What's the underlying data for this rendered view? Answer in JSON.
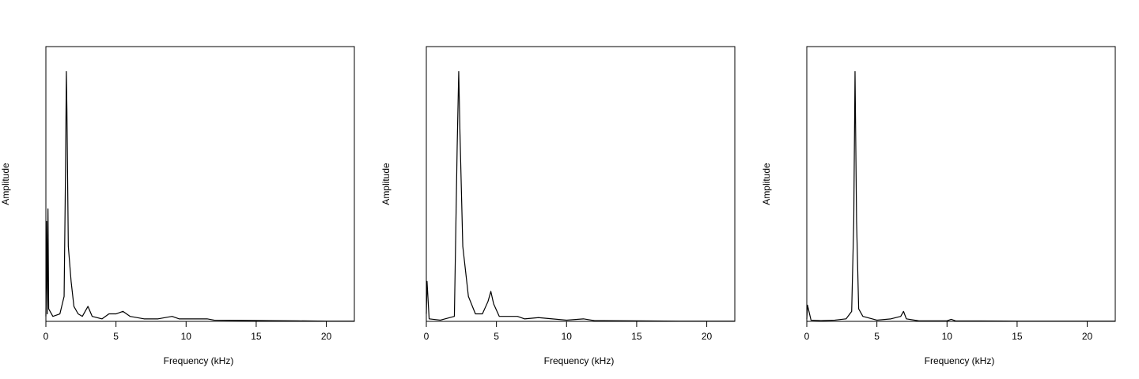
{
  "chart_data": [
    {
      "type": "line",
      "x_label": "Frequency (kHz)",
      "y_label": "Amplitude",
      "color": "#000000",
      "xlim": [
        0,
        22
      ],
      "ylim": [
        0,
        1.1
      ],
      "xticks": [
        0,
        5,
        10,
        15,
        20
      ],
      "x": [
        0,
        0.05,
        0.1,
        0.15,
        0.2,
        0.5,
        1.0,
        1.3,
        1.4,
        1.46,
        1.5,
        1.6,
        1.8,
        2.0,
        2.3,
        2.6,
        3.0,
        3.3,
        4.0,
        4.5,
        5.0,
        5.5,
        6.0,
        7.0,
        8.0,
        9.0,
        9.5,
        10.0,
        11.0,
        11.5,
        12,
        14,
        16,
        18,
        20,
        22
      ],
      "values": [
        0.02,
        0.4,
        0.03,
        0.45,
        0.05,
        0.02,
        0.03,
        0.1,
        0.6,
        1.0,
        0.85,
        0.3,
        0.16,
        0.06,
        0.03,
        0.02,
        0.06,
        0.02,
        0.01,
        0.03,
        0.03,
        0.04,
        0.02,
        0.01,
        0.01,
        0.02,
        0.01,
        0.01,
        0.01,
        0.01,
        0.005,
        0.004,
        0.003,
        0.002,
        0.001,
        0.001
      ]
    },
    {
      "type": "line",
      "x_label": "Frequency (kHz)",
      "y_label": "Amplitude",
      "color": "#000000",
      "xlim": [
        0,
        22
      ],
      "ylim": [
        0,
        1.1
      ],
      "xticks": [
        0,
        5,
        10,
        15,
        20
      ],
      "x": [
        0,
        0.05,
        0.2,
        1,
        2.0,
        2.2,
        2.31,
        2.4,
        2.6,
        2.8,
        3.0,
        3.5,
        4.0,
        4.4,
        4.6,
        4.8,
        5.2,
        6,
        6.5,
        7,
        8,
        9,
        10,
        11.2,
        12,
        15,
        18,
        22
      ],
      "values": [
        0.03,
        0.16,
        0.01,
        0.005,
        0.02,
        0.7,
        1.0,
        0.75,
        0.3,
        0.2,
        0.1,
        0.03,
        0.03,
        0.08,
        0.12,
        0.07,
        0.02,
        0.02,
        0.02,
        0.01,
        0.015,
        0.01,
        0.005,
        0.01,
        0.003,
        0.002,
        0.001,
        0.001
      ]
    },
    {
      "type": "line",
      "x_label": "Frequency (kHz)",
      "y_label": "Amplitude",
      "color": "#000000",
      "xlim": [
        0,
        22
      ],
      "ylim": [
        0,
        1.1
      ],
      "xticks": [
        0,
        5,
        10,
        15,
        20
      ],
      "x": [
        0,
        0.05,
        0.3,
        1,
        2,
        2.8,
        3.2,
        3.35,
        3.44,
        3.55,
        3.7,
        4,
        5,
        6,
        6.7,
        6.9,
        7.1,
        8,
        10,
        10.3,
        10.6,
        15,
        22
      ],
      "values": [
        0.01,
        0.065,
        0.005,
        0.003,
        0.005,
        0.01,
        0.04,
        0.4,
        1.0,
        0.4,
        0.05,
        0.02,
        0.005,
        0.01,
        0.02,
        0.04,
        0.01,
        0.002,
        0.002,
        0.008,
        0.002,
        0.001,
        0.001
      ]
    }
  ]
}
